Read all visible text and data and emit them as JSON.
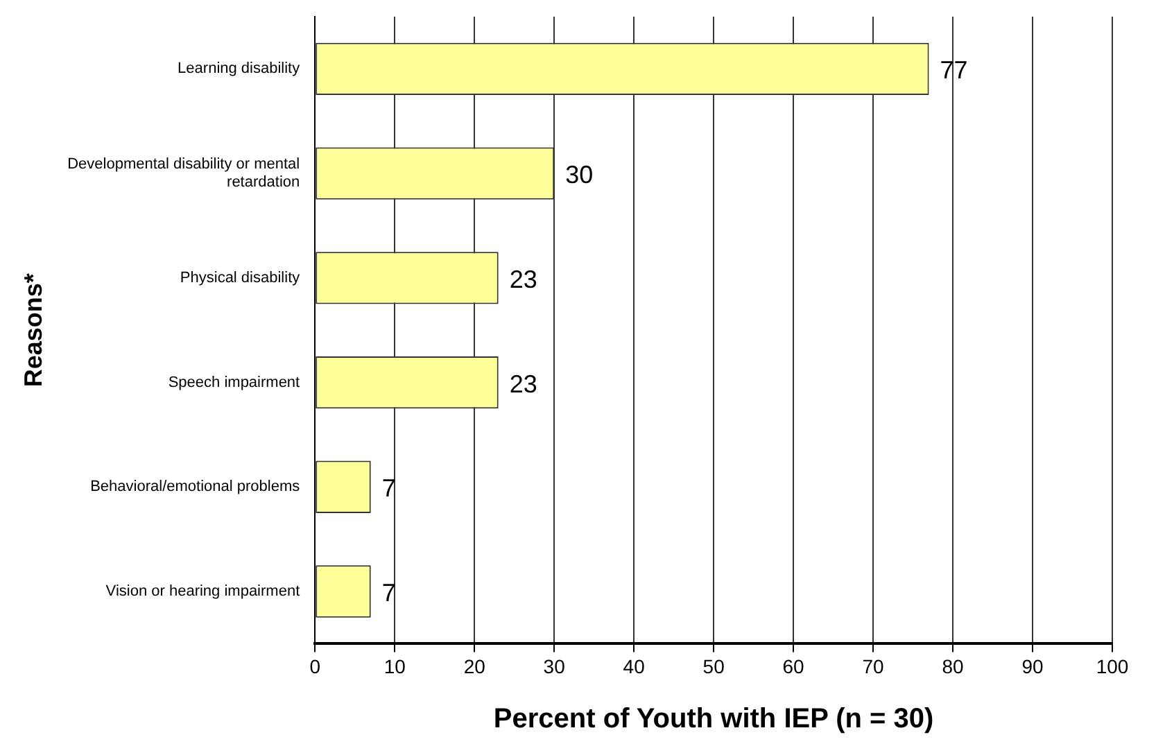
{
  "chart_data": {
    "type": "bar",
    "orientation": "horizontal",
    "xlabel": "Percent of Youth with IEP (n = 30)",
    "ylabel": "Reasons*",
    "categories": [
      "Learning disability",
      "Developmental disability or mental retardation",
      "Physical disability",
      "Speech impairment",
      "Behavioral/emotional problems",
      "Vision or hearing impairment"
    ],
    "values": [
      77,
      30,
      23,
      23,
      7,
      7
    ],
    "color": "#ffff99",
    "xlim": [
      0,
      100
    ],
    "xticks": [
      0,
      10,
      20,
      30,
      40,
      50,
      60,
      70,
      80,
      90,
      100
    ],
    "grid": "x",
    "data_labels": true
  }
}
